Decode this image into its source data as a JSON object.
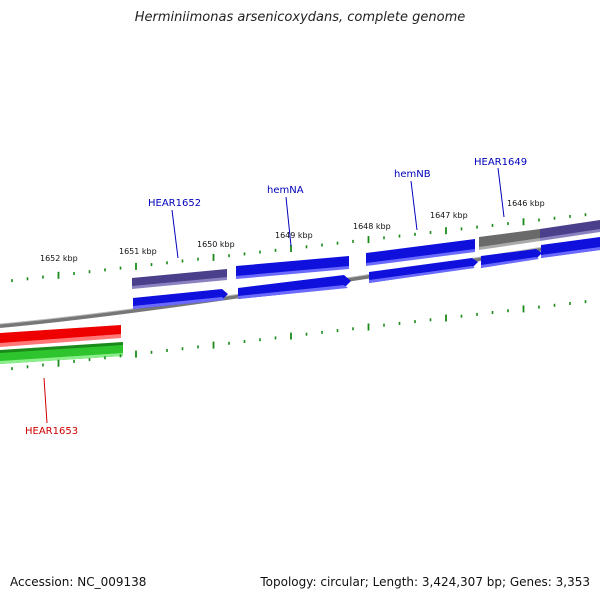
{
  "title": "Herminiimonas arsenicoxydans, complete genome",
  "footer": {
    "accession": "Accession: NC_009138",
    "stats": "Topology: circular; Length: 3,424,307 bp; Genes: 3,353"
  },
  "colors": {
    "forward_gene": "#1010dd",
    "forward_gene_light": "#4e4ef0",
    "purple_feature": "#4a3f8a",
    "gray_feature": "#6a6a6a",
    "red_gene": "#ee0000",
    "green_gene": "#2ec42e",
    "tick": "#1a8a1a",
    "backbone": "#888888",
    "label_blue": "#0000bb",
    "label_red": "#cc0000"
  },
  "scale_labels": [
    "1652 kbp",
    "1651 kbp",
    "1650 kbp",
    "1649 kbp",
    "1648 kbp",
    "1647 kbp",
    "1646 kbp"
  ],
  "gene_labels": {
    "hear1652": "HEAR1652",
    "hemNA": "hemNA",
    "hemNB": "hemNB",
    "hear1649": "HEAR1649",
    "hear1653": "HEAR1653"
  }
}
